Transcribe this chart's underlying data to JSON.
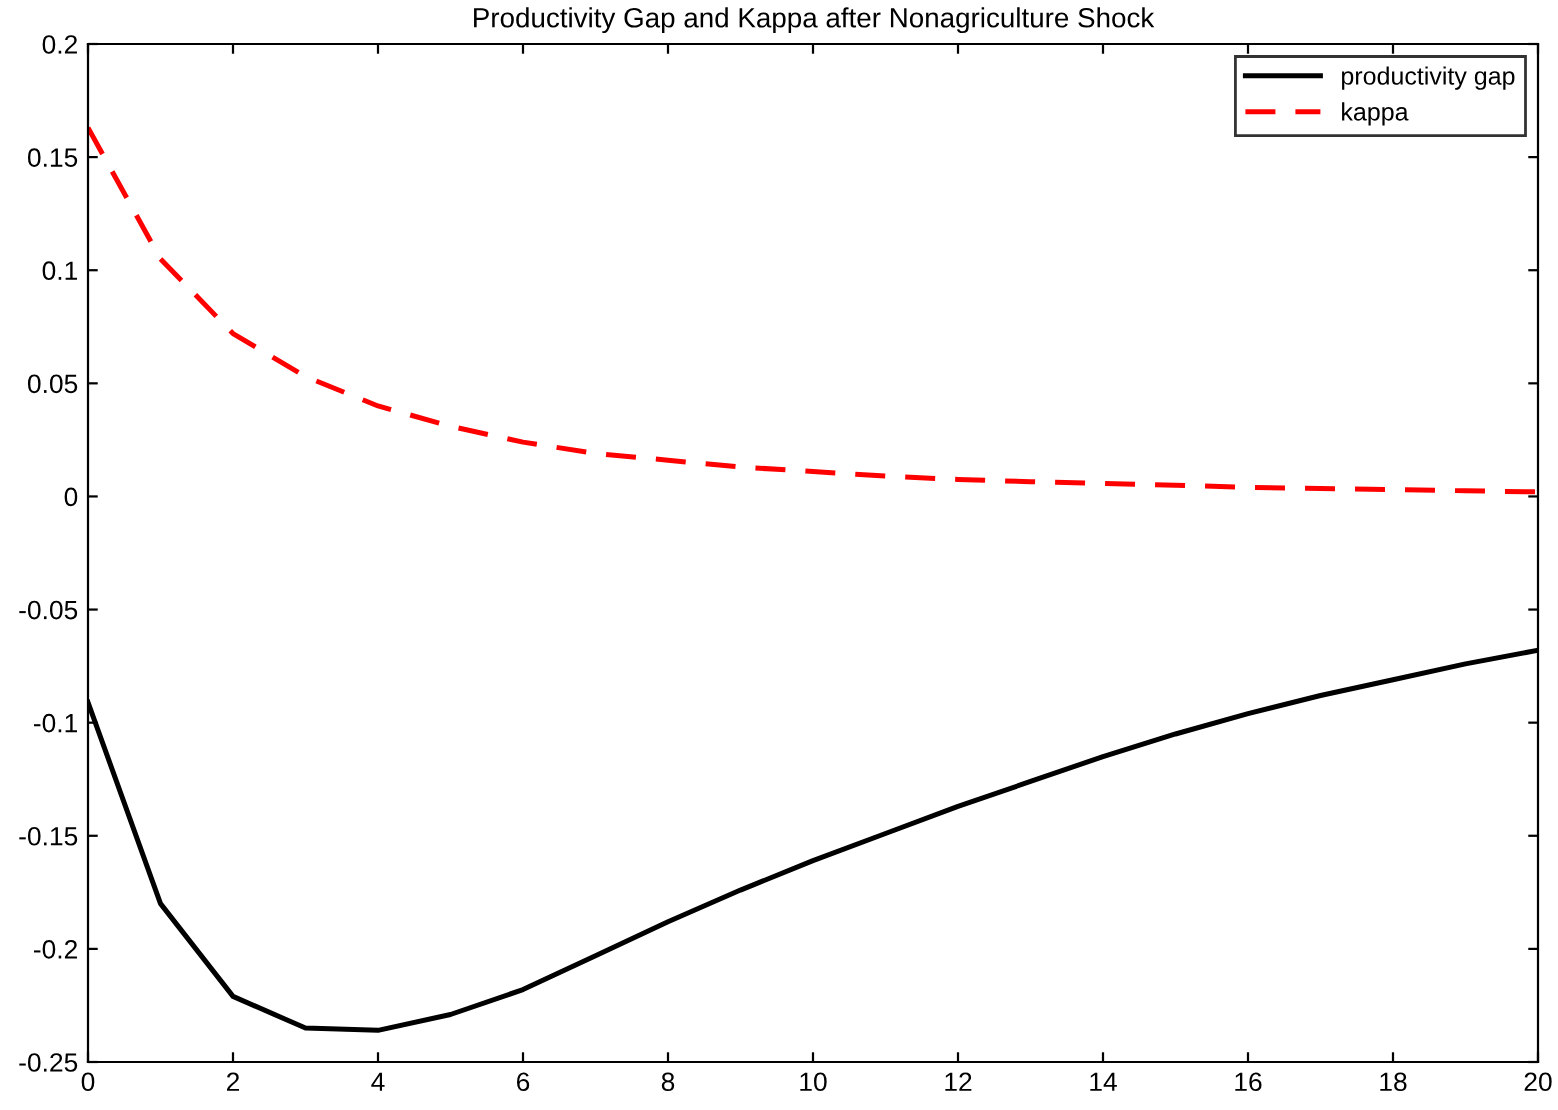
{
  "chart_data": {
    "type": "line",
    "title": "Productivity Gap and Kappa after Nonagriculture Shock",
    "x": [
      0,
      1,
      2,
      3,
      4,
      5,
      6,
      7,
      8,
      9,
      10,
      11,
      12,
      13,
      14,
      15,
      16,
      17,
      18,
      19,
      20
    ],
    "series": [
      {
        "name": "productivity gap",
        "color": "#000000",
        "line_style": "solid",
        "values": [
          -0.091,
          -0.18,
          -0.221,
          -0.235,
          -0.236,
          -0.229,
          -0.218,
          -0.203,
          -0.188,
          -0.174,
          -0.161,
          -0.149,
          -0.137,
          -0.126,
          -0.115,
          -0.105,
          -0.096,
          -0.088,
          -0.081,
          -0.074,
          -0.068
        ]
      },
      {
        "name": "kappa",
        "color": "#ff0000",
        "line_style": "dashed",
        "values": [
          0.163,
          0.105,
          0.072,
          0.053,
          0.04,
          0.031,
          0.024,
          0.019,
          0.016,
          0.013,
          0.011,
          0.009,
          0.0075,
          0.0065,
          0.0057,
          0.005,
          0.004,
          0.0035,
          0.003,
          0.0025,
          0.002
        ]
      }
    ],
    "xlim": [
      0,
      20
    ],
    "xticks": [
      0,
      2,
      4,
      6,
      8,
      10,
      12,
      14,
      16,
      18,
      20
    ],
    "ylim": [
      -0.25,
      0.2
    ],
    "yticks": [
      -0.25,
      -0.2,
      -0.15,
      -0.1,
      -0.05,
      0,
      0.05,
      0.1,
      0.15,
      0.2
    ],
    "grid": false,
    "legend": "top right"
  }
}
